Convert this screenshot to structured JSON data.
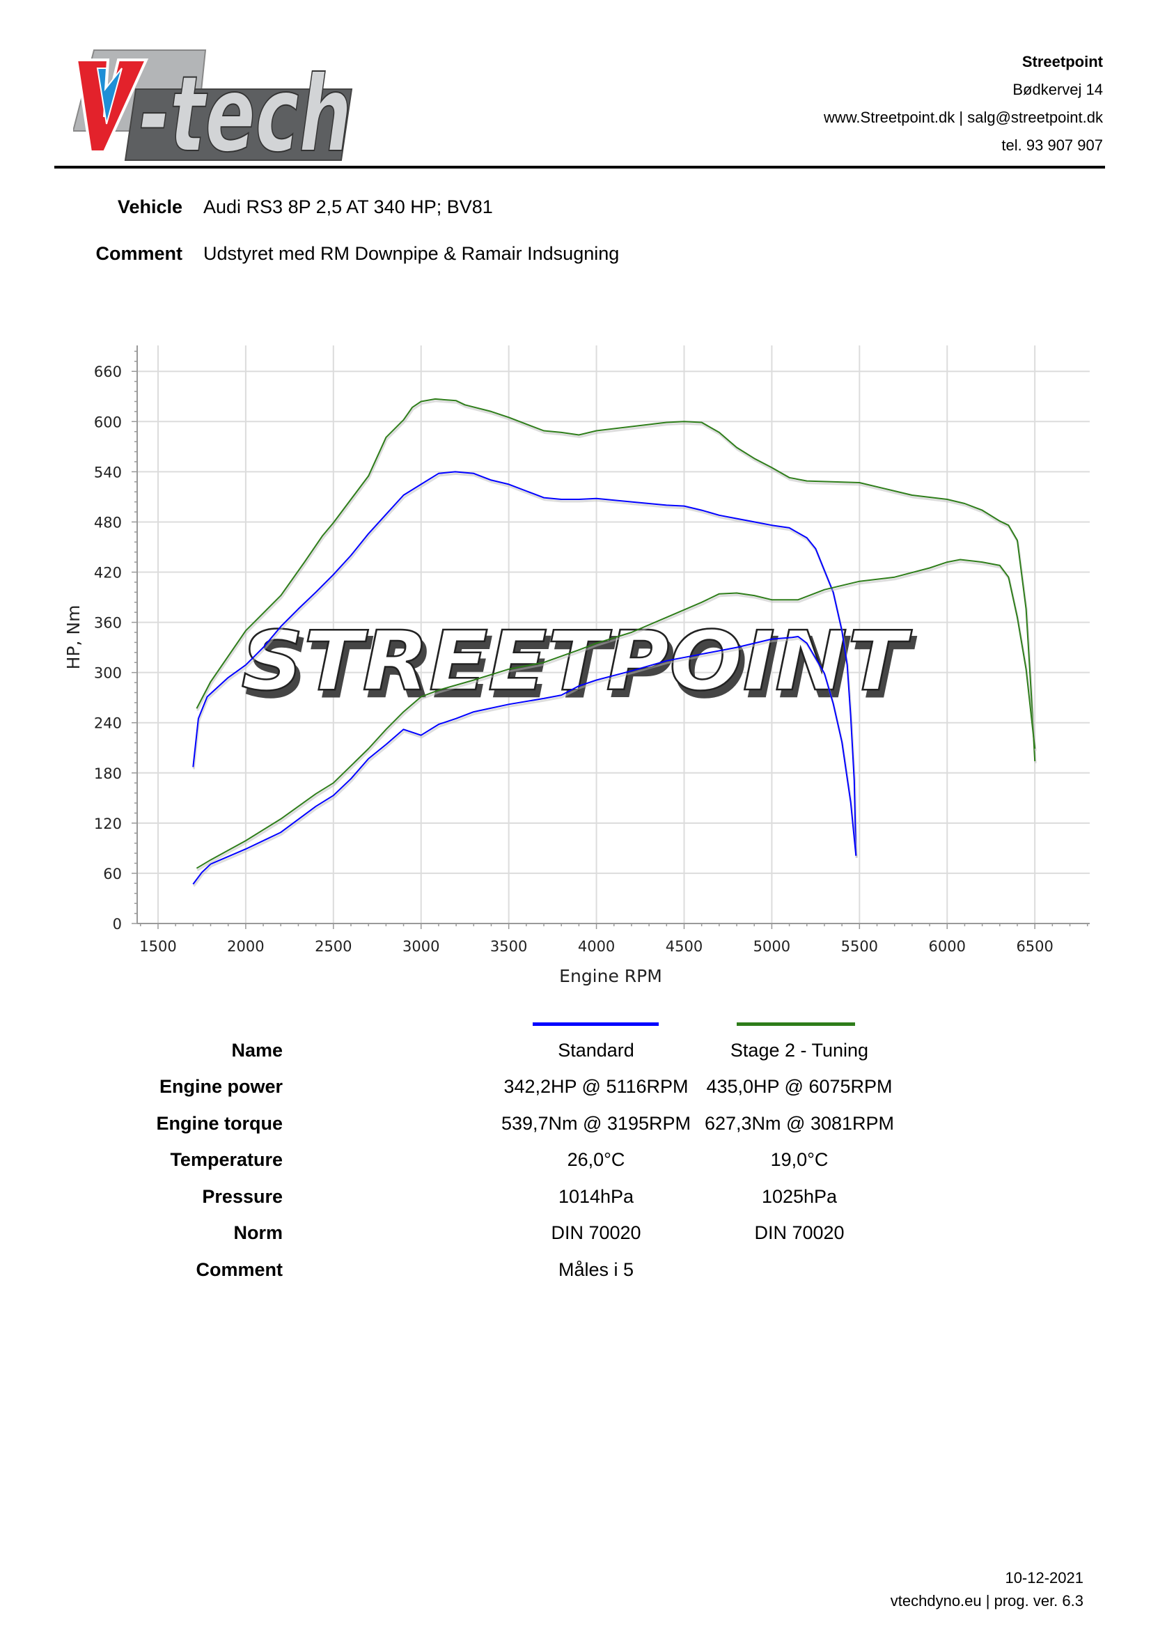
{
  "logo": {
    "text": "V-tech",
    "colors": {
      "red": "#e3222b",
      "blue": "#1e8fd6",
      "grey": "#c9cbcd",
      "dark": "#555"
    }
  },
  "header": {
    "company": "Streetpoint",
    "address": "Bødkervej 14",
    "web_email": "www.Streetpoint.dk | salg@streetpoint.dk",
    "phone": "tel. 93 907 907"
  },
  "info": {
    "vehicle_label": "Vehicle",
    "vehicle_value": "Audi RS3 8P 2,5 AT 340 HP; BV81",
    "comment_label": "Comment",
    "comment_value": "Udstyret med RM Downpipe & Ramair Indsugning"
  },
  "watermark": {
    "text": "STREETPOINT"
  },
  "chart_data": {
    "type": "line",
    "xlabel": "Engine RPM",
    "ylabel": "HP, Nm",
    "xticks": [
      1500,
      2000,
      2500,
      3000,
      3500,
      4000,
      4500,
      5000,
      5500,
      6000,
      6500
    ],
    "yticks": [
      0,
      60,
      120,
      180,
      240,
      300,
      360,
      420,
      480,
      540,
      600,
      660
    ],
    "xlim": [
      1381,
      6813
    ],
    "ylim": [
      0,
      691
    ],
    "grid": true,
    "series": [
      {
        "name": "Standard",
        "quantity": "torque",
        "color": "#0000ff",
        "points": [
          [
            1700,
            187
          ],
          [
            1730,
            245
          ],
          [
            1780,
            271
          ],
          [
            1900,
            294
          ],
          [
            2000,
            309
          ],
          [
            2100,
            330
          ],
          [
            2200,
            355
          ],
          [
            2300,
            376
          ],
          [
            2400,
            396
          ],
          [
            2500,
            417
          ],
          [
            2600,
            440
          ],
          [
            2700,
            466
          ],
          [
            2800,
            489
          ],
          [
            2900,
            512
          ],
          [
            3000,
            525
          ],
          [
            3100,
            538
          ],
          [
            3195,
            540
          ],
          [
            3300,
            538
          ],
          [
            3400,
            530
          ],
          [
            3500,
            525
          ],
          [
            3600,
            517
          ],
          [
            3700,
            509
          ],
          [
            3800,
            507
          ],
          [
            3900,
            507
          ],
          [
            4000,
            508
          ],
          [
            4200,
            504
          ],
          [
            4400,
            500
          ],
          [
            4500,
            499
          ],
          [
            4600,
            494
          ],
          [
            4700,
            488
          ],
          [
            4800,
            484
          ],
          [
            4900,
            480
          ],
          [
            5000,
            476
          ],
          [
            5100,
            473
          ],
          [
            5200,
            461
          ],
          [
            5250,
            448
          ],
          [
            5300,
            422
          ],
          [
            5350,
            396
          ],
          [
            5400,
            350
          ],
          [
            5430,
            309
          ],
          [
            5450,
            248
          ],
          [
            5470,
            171
          ],
          [
            5480,
            81
          ]
        ]
      },
      {
        "name": "Standard",
        "quantity": "power",
        "color": "#0000ff",
        "points": [
          [
            1700,
            47
          ],
          [
            1750,
            61
          ],
          [
            1800,
            71
          ],
          [
            2000,
            89
          ],
          [
            2200,
            109
          ],
          [
            2400,
            140
          ],
          [
            2500,
            153
          ],
          [
            2600,
            173
          ],
          [
            2700,
            197
          ],
          [
            2800,
            214
          ],
          [
            2900,
            232
          ],
          [
            3000,
            225
          ],
          [
            3100,
            238
          ],
          [
            3200,
            245
          ],
          [
            3300,
            253
          ],
          [
            3500,
            262
          ],
          [
            3700,
            269
          ],
          [
            3800,
            273
          ],
          [
            3900,
            284
          ],
          [
            4000,
            291
          ],
          [
            4200,
            302
          ],
          [
            4400,
            314
          ],
          [
            4600,
            322
          ],
          [
            4800,
            330
          ],
          [
            5000,
            340
          ],
          [
            5116,
            342
          ],
          [
            5150,
            343
          ],
          [
            5200,
            335
          ],
          [
            5300,
            299
          ],
          [
            5350,
            263
          ],
          [
            5400,
            217
          ],
          [
            5450,
            145
          ],
          [
            5480,
            81
          ]
        ]
      },
      {
        "name": "Stage 2 - Tuning",
        "quantity": "torque",
        "color": "#2e7d1a",
        "points": [
          [
            1720,
            257
          ],
          [
            1800,
            289
          ],
          [
            2000,
            350
          ],
          [
            2200,
            392
          ],
          [
            2335,
            432
          ],
          [
            2436,
            463
          ],
          [
            2500,
            479
          ],
          [
            2700,
            535
          ],
          [
            2800,
            581
          ],
          [
            2900,
            602
          ],
          [
            2950,
            617
          ],
          [
            3000,
            624
          ],
          [
            3081,
            627
          ],
          [
            3200,
            625
          ],
          [
            3250,
            620
          ],
          [
            3400,
            612
          ],
          [
            3500,
            605
          ],
          [
            3600,
            597
          ],
          [
            3700,
            589
          ],
          [
            3800,
            587
          ],
          [
            3900,
            584
          ],
          [
            4000,
            589
          ],
          [
            4200,
            594
          ],
          [
            4400,
            599
          ],
          [
            4500,
            600
          ],
          [
            4600,
            599
          ],
          [
            4700,
            587
          ],
          [
            4800,
            569
          ],
          [
            4900,
            556
          ],
          [
            5000,
            545
          ],
          [
            5100,
            533
          ],
          [
            5200,
            529
          ],
          [
            5500,
            527
          ],
          [
            5700,
            517
          ],
          [
            5800,
            512
          ],
          [
            6000,
            507
          ],
          [
            6100,
            502
          ],
          [
            6200,
            494
          ],
          [
            6300,
            481
          ],
          [
            6350,
            476
          ],
          [
            6400,
            458
          ],
          [
            6450,
            376
          ],
          [
            6480,
            273
          ],
          [
            6500,
            194
          ]
        ]
      },
      {
        "name": "Stage 2 - Tuning",
        "quantity": "power",
        "color": "#2e7d1a",
        "points": [
          [
            1720,
            66
          ],
          [
            1800,
            76
          ],
          [
            2000,
            99
          ],
          [
            2200,
            125
          ],
          [
            2400,
            155
          ],
          [
            2500,
            168
          ],
          [
            2700,
            209
          ],
          [
            2800,
            232
          ],
          [
            2900,
            253
          ],
          [
            3000,
            271
          ],
          [
            3100,
            279
          ],
          [
            3300,
            291
          ],
          [
            3500,
            304
          ],
          [
            3700,
            312
          ],
          [
            3900,
            327
          ],
          [
            4000,
            335
          ],
          [
            4200,
            348
          ],
          [
            4400,
            366
          ],
          [
            4600,
            384
          ],
          [
            4700,
            394
          ],
          [
            4800,
            395
          ],
          [
            4900,
            392
          ],
          [
            5000,
            387
          ],
          [
            5150,
            387
          ],
          [
            5300,
            399
          ],
          [
            5500,
            409
          ],
          [
            5700,
            414
          ],
          [
            5900,
            425
          ],
          [
            6000,
            432
          ],
          [
            6075,
            435
          ],
          [
            6200,
            432
          ],
          [
            6300,
            428
          ],
          [
            6350,
            414
          ],
          [
            6400,
            366
          ],
          [
            6450,
            304
          ],
          [
            6500,
            209
          ]
        ]
      }
    ]
  },
  "results": {
    "legend_colors": [
      "#0000ff",
      "#2e7d1a"
    ],
    "rows": [
      {
        "label": "Name",
        "standard": "Standard",
        "tuned": "Stage 2 - Tuning"
      },
      {
        "label": "Engine power",
        "standard": "342,2HP @ 5116RPM",
        "tuned": "435,0HP @ 6075RPM"
      },
      {
        "label": "Engine torque",
        "standard": "539,7Nm @ 3195RPM",
        "tuned": "627,3Nm @ 3081RPM"
      },
      {
        "label": "Temperature",
        "standard": "26,0°C",
        "tuned": "19,0°C"
      },
      {
        "label": "Pressure",
        "standard": "1014hPa",
        "tuned": "1025hPa"
      },
      {
        "label": "Norm",
        "standard": "DIN 70020",
        "tuned": "DIN 70020"
      },
      {
        "label": "Comment",
        "standard": "Måles i 5",
        "tuned": ""
      }
    ]
  },
  "footer": {
    "date": "10-12-2021",
    "program": "vtechdyno.eu | prog. ver. 6.3"
  }
}
